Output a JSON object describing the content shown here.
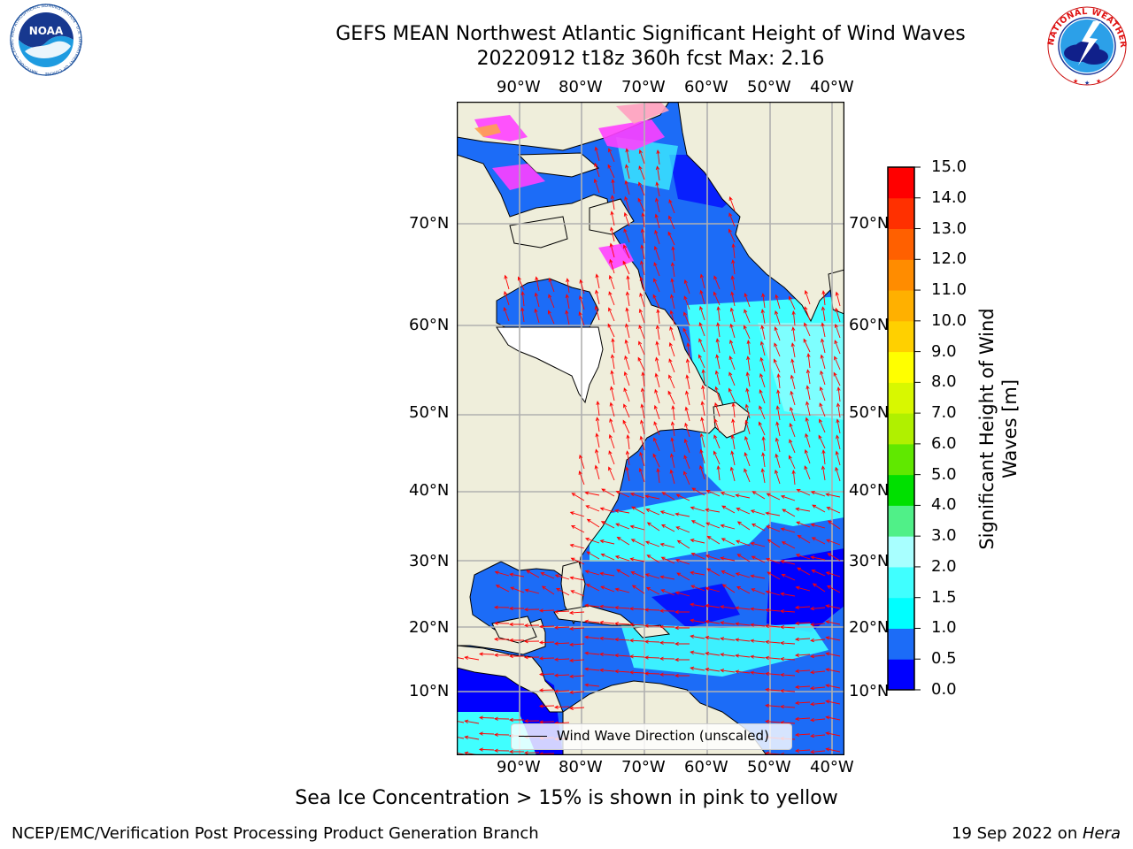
{
  "title": {
    "line1": "GEFS MEAN Northwest Atlantic Significant Height of Wind Waves",
    "line2": "20220912 t18z 360h fcst   Max: 2.16"
  },
  "logos": {
    "left": {
      "name": "noaa-logo",
      "text": "NOAA",
      "ring_text": "NATIONAL OCEANIC AND ATMOSPHERIC ADMINISTRATION · U.S. DEPARTMENT OF COMMERCE"
    },
    "right": {
      "name": "nws-logo",
      "ring_text": "NATIONAL WEATHER SERVICE"
    }
  },
  "map": {
    "lon_labels": [
      "90°W",
      "80°W",
      "70°W",
      "60°W",
      "50°W",
      "40°W"
    ],
    "lat_labels": [
      "70°N",
      "60°N",
      "50°N",
      "40°N",
      "30°N",
      "20°N",
      "10°N"
    ],
    "legend_label": "Wind Wave Direction (unscaled)"
  },
  "colorbar": {
    "label_line1": "Significant Height of Wind",
    "label_line2": "Waves [m]",
    "ticks": [
      "0.0",
      "0.5",
      "1.0",
      "1.5",
      "2.0",
      "3.0",
      "4.0",
      "5.0",
      "6.0",
      "7.0",
      "8.0",
      "9.0",
      "10.0",
      "11.0",
      "12.0",
      "13.0",
      "14.0",
      "15.0"
    ],
    "colors": [
      "#0000ff",
      "#1c6cf7",
      "#00ffff",
      "#40ffff",
      "#a8ffff",
      "#50f088",
      "#00e000",
      "#60e800",
      "#b0f000",
      "#d8f800",
      "#ffff00",
      "#ffd000",
      "#ffb000",
      "#ff8c00",
      "#ff6000",
      "#ff3000",
      "#ff0000"
    ]
  },
  "colors": {
    "land": "#efeedb",
    "grid": "#b0b0b0",
    "arrows": "#ff0000",
    "sea_ice": "#ff40ff"
  },
  "sea_ice_note": "Sea Ice Concentration > 15% is shown in pink to yellow",
  "footer": {
    "left": "NCEP/EMC/Verification Post Processing Product Generation Branch",
    "right_date": "19 Sep 2022 on ",
    "right_host": "Hera"
  }
}
